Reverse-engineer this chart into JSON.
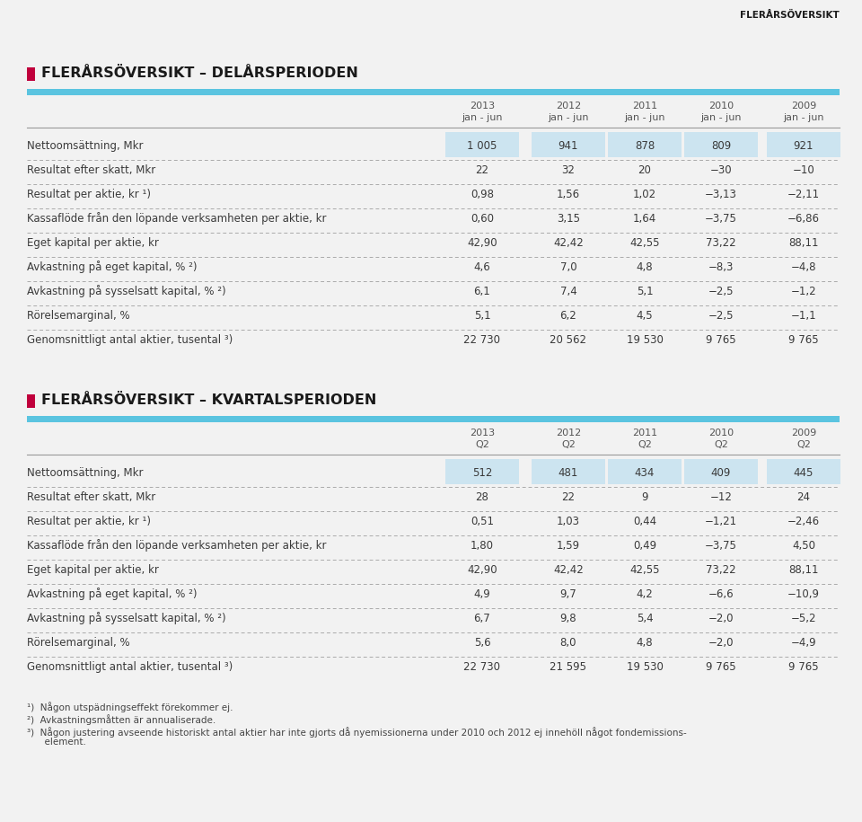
{
  "bg_color": "#f0f0f0",
  "page_bg": "#f0f0f0",
  "header_bar_color": "#5bc4e0",
  "title_square_color": "#c0003c",
  "top_label": "FLERÅRSÖVERSIKT",
  "section1_title": "FLERÅRSÖVERSIKT – DELÅRSPERIODEN",
  "section2_title": "FLERÅRSÖVERSIKT – KVARTALSPERIODEN",
  "col_years": [
    "2013",
    "2012",
    "2011",
    "2010",
    "2009"
  ],
  "col_sub1": [
    "jan - jun",
    "jan - jun",
    "jan - jun",
    "jan - jun",
    "jan - jun"
  ],
  "col_sub2": [
    "Q2",
    "Q2",
    "Q2",
    "Q2",
    "Q2"
  ],
  "table1_rows": [
    {
      "label": "Nettoomsättning, Mkr",
      "values": [
        "1 005",
        "941",
        "878",
        "809",
        "921"
      ],
      "shaded": true
    },
    {
      "label": "Resultat efter skatt, Mkr",
      "values": [
        "22",
        "32",
        "20",
        "−30",
        "−10"
      ],
      "shaded": false
    },
    {
      "label": "Resultat per aktie, kr ¹)",
      "values": [
        "0,98",
        "1,56",
        "1,02",
        "−3,13",
        "−2,11"
      ],
      "shaded": false
    },
    {
      "label": "Kassaflöde från den löpande verksamheten per aktie, kr",
      "values": [
        "0,60",
        "3,15",
        "1,64",
        "−3,75",
        "−6,86"
      ],
      "shaded": false
    },
    {
      "label": "Eget kapital per aktie, kr",
      "values": [
        "42,90",
        "42,42",
        "42,55",
        "73,22",
        "88,11"
      ],
      "shaded": false
    },
    {
      "label": "Avkastning på eget kapital, % ²)",
      "values": [
        "4,6",
        "7,0",
        "4,8",
        "−8,3",
        "−4,8"
      ],
      "shaded": false
    },
    {
      "label": "Avkastning på sysselsatt kapital, % ²)",
      "values": [
        "6,1",
        "7,4",
        "5,1",
        "−2,5",
        "−1,2"
      ],
      "shaded": false
    },
    {
      "label": "Rörelsemarginal, %",
      "values": [
        "5,1",
        "6,2",
        "4,5",
        "−2,5",
        "−1,1"
      ],
      "shaded": false
    },
    {
      "label": "Genomsnittligt antal aktier, tusental ³)",
      "values": [
        "22 730",
        "20 562",
        "19 530",
        "9 765",
        "9 765"
      ],
      "shaded": false
    }
  ],
  "table2_rows": [
    {
      "label": "Nettoomsättning, Mkr",
      "values": [
        "512",
        "481",
        "434",
        "409",
        "445"
      ],
      "shaded": true
    },
    {
      "label": "Resultat efter skatt, Mkr",
      "values": [
        "28",
        "22",
        "9",
        "−12",
        "24"
      ],
      "shaded": false
    },
    {
      "label": "Resultat per aktie, kr ¹)",
      "values": [
        "0,51",
        "1,03",
        "0,44",
        "−1,21",
        "−2,46"
      ],
      "shaded": false
    },
    {
      "label": "Kassaflöde från den löpande verksamheten per aktie, kr",
      "values": [
        "1,80",
        "1,59",
        "0,49",
        "−3,75",
        "4,50"
      ],
      "shaded": false
    },
    {
      "label": "Eget kapital per aktie, kr",
      "values": [
        "42,90",
        "42,42",
        "42,55",
        "73,22",
        "88,11"
      ],
      "shaded": false
    },
    {
      "label": "Avkastning på eget kapital, % ²)",
      "values": [
        "4,9",
        "9,7",
        "4,2",
        "−6,6",
        "−10,9"
      ],
      "shaded": false
    },
    {
      "label": "Avkastning på sysselsatt kapital, % ²)",
      "values": [
        "6,7",
        "9,8",
        "5,4",
        "−2,0",
        "−5,2"
      ],
      "shaded": false
    },
    {
      "label": "Rörelsemarginal, %",
      "values": [
        "5,6",
        "8,0",
        "4,8",
        "−2,0",
        "−4,9"
      ],
      "shaded": false
    },
    {
      "label": "Genomsnittligt antal aktier, tusental ³)",
      "values": [
        "22 730",
        "21 595",
        "19 530",
        "9 765",
        "9 765"
      ],
      "shaded": false
    }
  ],
  "footnote1": "¹)  Någon utspädningseffekt förekommer ej.",
  "footnote2": "²)  Avkastningsmåtten är annualiserade.",
  "footnote3a": "³)  Någon justering avseende historiskt antal aktier har inte gjorts då nyemissionerna under 2010 och 2012 ej innehöll något fondemissions-",
  "footnote3b": "      element.",
  "shaded_col_color": "#cce4f0",
  "row_label_color": "#3a3a3a",
  "value_color": "#3a3a3a",
  "header_year_color": "#555555",
  "sep_line_color": "#aaaaaa",
  "strong_line_color": "#777777"
}
